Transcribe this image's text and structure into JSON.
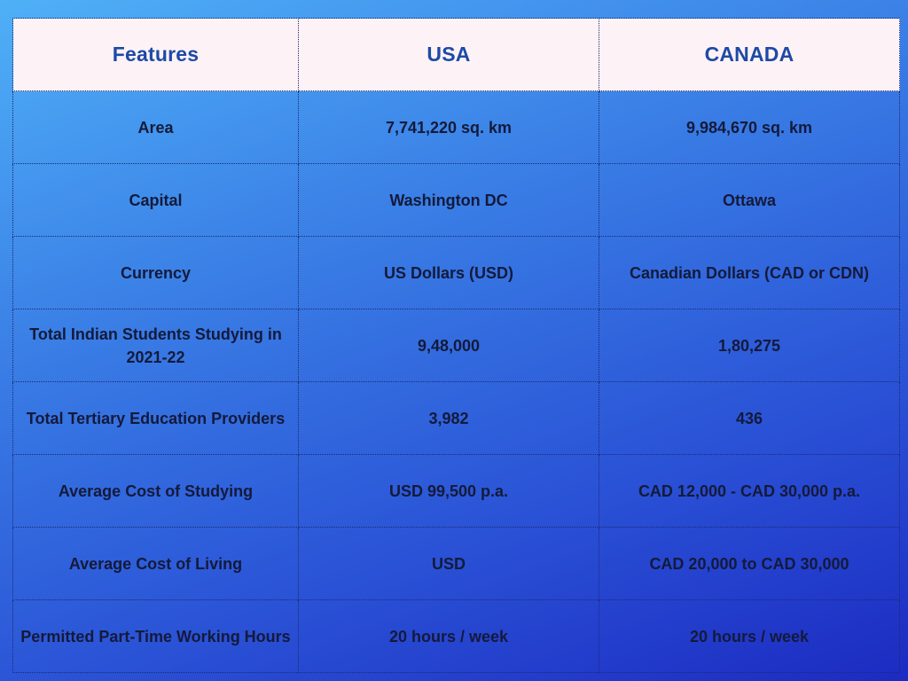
{
  "table": {
    "headers": [
      "Features",
      "USA",
      "CANADA"
    ],
    "rows": [
      [
        "Area",
        "7,741,220 sq. km",
        "9,984,670 sq. km"
      ],
      [
        "Capital",
        "Washington DC",
        "Ottawa"
      ],
      [
        "Currency",
        "US Dollars (USD)",
        "Canadian Dollars (CAD or CDN)"
      ],
      [
        "Total Indian Students Studying in 2021-22",
        "9,48,000",
        "1,80,275"
      ],
      [
        "Total Tertiary Education Providers",
        "3,982",
        "436"
      ],
      [
        "Average Cost of Studying",
        "USD 99,500 p.a.",
        "CAD 12,000 - CAD 30,000 p.a."
      ],
      [
        "Average Cost of Living",
        "USD",
        "CAD 20,000 to CAD 30,000"
      ],
      [
        "Permitted Part-Time Working Hours",
        "20 hours / week",
        "20 hours / week"
      ]
    ]
  },
  "colors": {
    "header_bg": "#fdf2f6",
    "header_text": "#1d4aa5",
    "body_text": "#141a3a",
    "bg_gradient_start": "#4fb0f7",
    "bg_gradient_end": "#1c2bc2"
  }
}
